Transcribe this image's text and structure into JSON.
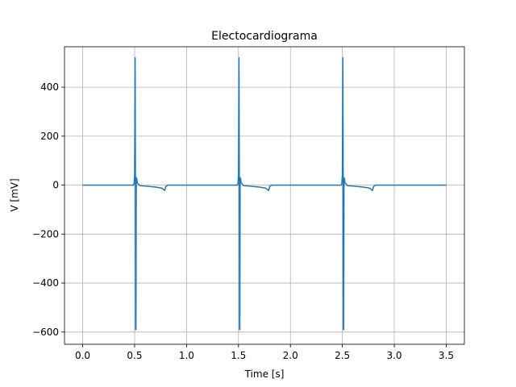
{
  "chart_data": {
    "type": "line",
    "title": "Electocardiograma",
    "xlabel": "Time [s]",
    "ylabel": "V [mV]",
    "xlim": [
      -0.175,
      3.675
    ],
    "ylim": [
      -650,
      565
    ],
    "grid": true,
    "x_ticks": [
      0.0,
      0.5,
      1.0,
      1.5,
      2.0,
      2.5,
      3.0,
      3.5
    ],
    "x_tick_labels": [
      "0.0",
      "0.5",
      "1.0",
      "1.5",
      "2.0",
      "2.5",
      "3.0",
      "3.5"
    ],
    "y_ticks": [
      -600,
      -400,
      -200,
      0,
      200,
      400
    ],
    "y_tick_labels": [
      "−600",
      "−400",
      "−200",
      "0",
      "200",
      "400"
    ],
    "colors": {
      "series": "#1f77b4"
    },
    "series": [
      {
        "values": [
          [
            0.0,
            0
          ],
          [
            0.49,
            0
          ],
          [
            0.495,
            8
          ],
          [
            0.5,
            40
          ],
          [
            0.505,
            520
          ],
          [
            0.508,
            40
          ],
          [
            0.51,
            -590
          ],
          [
            0.513,
            -590
          ],
          [
            0.516,
            30
          ],
          [
            0.52,
            28
          ],
          [
            0.525,
            10
          ],
          [
            0.55,
            -2
          ],
          [
            0.6,
            -4
          ],
          [
            0.7,
            -8
          ],
          [
            0.76,
            -12
          ],
          [
            0.78,
            -18
          ],
          [
            0.79,
            -22
          ],
          [
            0.8,
            -6
          ],
          [
            0.82,
            0
          ],
          [
            1.49,
            0
          ],
          [
            1.495,
            8
          ],
          [
            1.5,
            40
          ],
          [
            1.505,
            520
          ],
          [
            1.508,
            40
          ],
          [
            1.51,
            -590
          ],
          [
            1.513,
            -590
          ],
          [
            1.516,
            30
          ],
          [
            1.52,
            28
          ],
          [
            1.525,
            10
          ],
          [
            1.55,
            -2
          ],
          [
            1.6,
            -4
          ],
          [
            1.7,
            -8
          ],
          [
            1.76,
            -12
          ],
          [
            1.78,
            -18
          ],
          [
            1.79,
            -22
          ],
          [
            1.8,
            -6
          ],
          [
            1.82,
            0
          ],
          [
            2.49,
            0
          ],
          [
            2.495,
            8
          ],
          [
            2.5,
            40
          ],
          [
            2.505,
            520
          ],
          [
            2.508,
            40
          ],
          [
            2.51,
            -590
          ],
          [
            2.513,
            -590
          ],
          [
            2.516,
            30
          ],
          [
            2.52,
            28
          ],
          [
            2.525,
            10
          ],
          [
            2.55,
            -2
          ],
          [
            2.6,
            -4
          ],
          [
            2.7,
            -8
          ],
          [
            2.76,
            -12
          ],
          [
            2.78,
            -18
          ],
          [
            2.79,
            -22
          ],
          [
            2.8,
            -6
          ],
          [
            2.82,
            0
          ],
          [
            3.5,
            0
          ]
        ]
      }
    ]
  }
}
